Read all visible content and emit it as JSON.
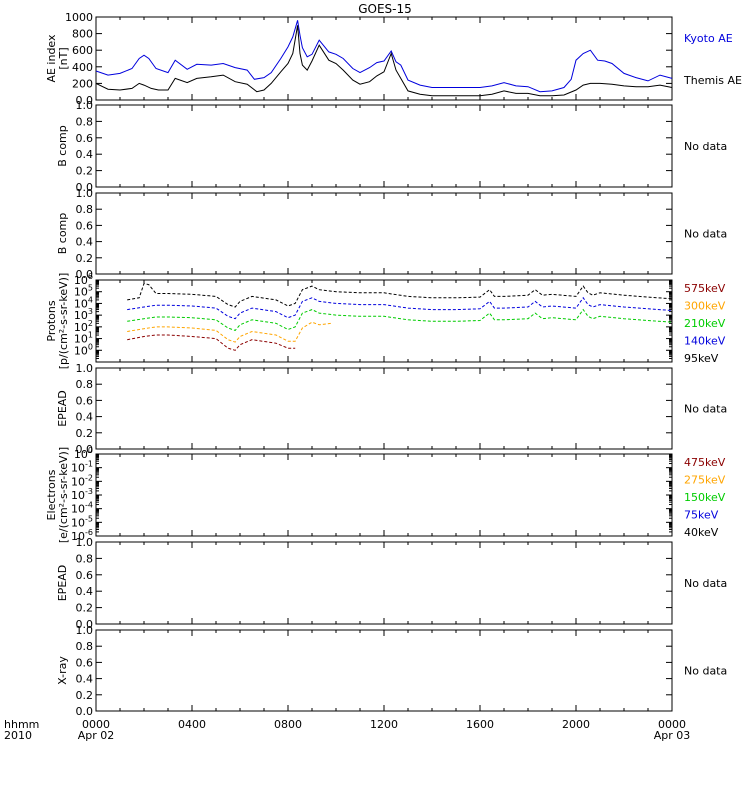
{
  "title": "GOES-15",
  "time_axis": {
    "corner_top": "hhmm",
    "corner_bottom": "2010",
    "ticks": [
      {
        "hours": 0,
        "label": "0000",
        "sublabel": "Apr 02"
      },
      {
        "hours": 4,
        "label": "0400",
        "sublabel": ""
      },
      {
        "hours": 8,
        "label": "0800",
        "sublabel": ""
      },
      {
        "hours": 12,
        "label": "1200",
        "sublabel": ""
      },
      {
        "hours": 16,
        "label": "1600",
        "sublabel": ""
      },
      {
        "hours": 20,
        "label": "2000",
        "sublabel": ""
      },
      {
        "hours": 24,
        "label": "0000",
        "sublabel": "Apr 03"
      }
    ]
  },
  "no_data_text": "No data",
  "colors": {
    "kyoto": "#0000dd",
    "themis": "#000000",
    "e475": "#8b0000",
    "e275": "#ffa500",
    "e150": "#00cc00",
    "e75": "#0000dd",
    "e40": "#000000"
  },
  "chart_data": [
    {
      "id": "ae",
      "type": "line",
      "ylabel": [
        "AE index",
        "[nT]"
      ],
      "ylim": [
        0,
        1000
      ],
      "yticks": [
        0,
        200,
        400,
        600,
        800,
        1000
      ],
      "xlim_hours": [
        0,
        24
      ],
      "series": [
        {
          "name": "Kyoto AE",
          "color_key": "kyoto",
          "x": [
            0,
            0.5,
            1,
            1.5,
            1.8,
            2,
            2.2,
            2.5,
            3,
            3.3,
            3.8,
            4.2,
            4.8,
            5.3,
            5.8,
            6.3,
            6.6,
            7,
            7.3,
            7.7,
            8,
            8.2,
            8.4,
            8.5,
            8.6,
            8.8,
            9,
            9.3,
            9.7,
            10,
            10.3,
            10.7,
            11,
            11.4,
            11.7,
            12,
            12.3,
            12.5,
            12.7,
            13,
            13.5,
            14,
            15,
            16,
            16.5,
            17,
            17.5,
            18,
            18.5,
            19,
            19.5,
            19.8,
            20,
            20.3,
            20.6,
            20.9,
            21.2,
            21.5,
            22,
            22.5,
            23,
            23.5,
            24
          ],
          "y": [
            350,
            300,
            320,
            380,
            500,
            540,
            500,
            380,
            330,
            480,
            370,
            430,
            420,
            440,
            390,
            360,
            250,
            270,
            330,
            500,
            640,
            760,
            960,
            780,
            630,
            520,
            550,
            720,
            580,
            550,
            500,
            380,
            330,
            390,
            450,
            470,
            590,
            460,
            420,
            240,
            180,
            150,
            150,
            150,
            170,
            210,
            170,
            160,
            100,
            110,
            150,
            250,
            480,
            560,
            600,
            480,
            470,
            440,
            320,
            270,
            230,
            300,
            260
          ]
        },
        {
          "name": "Themis AE",
          "color_key": "themis",
          "x": [
            0,
            0.5,
            1,
            1.5,
            1.8,
            2,
            2.3,
            2.6,
            3,
            3.3,
            3.8,
            4.2,
            4.8,
            5.3,
            5.8,
            6.3,
            6.7,
            7,
            7.3,
            7.7,
            8,
            8.2,
            8.4,
            8.5,
            8.6,
            8.8,
            9,
            9.3,
            9.7,
            10,
            10.3,
            10.7,
            11,
            11.4,
            11.7,
            12,
            12.3,
            12.5,
            12.7,
            13,
            13.5,
            14,
            15,
            16,
            16.5,
            17,
            17.5,
            18,
            18.5,
            19,
            19.5,
            20,
            20.3,
            20.6,
            21,
            21.5,
            22,
            22.5,
            23,
            23.5,
            24
          ],
          "y": [
            200,
            130,
            120,
            140,
            200,
            180,
            140,
            120,
            120,
            260,
            210,
            260,
            280,
            300,
            220,
            190,
            100,
            120,
            200,
            340,
            440,
            560,
            900,
            560,
            420,
            360,
            470,
            660,
            480,
            440,
            360,
            240,
            190,
            220,
            290,
            340,
            560,
            360,
            260,
            110,
            70,
            50,
            50,
            50,
            70,
            110,
            80,
            80,
            50,
            50,
            60,
            120,
            180,
            200,
            200,
            190,
            170,
            160,
            160,
            180,
            150
          ]
        }
      ],
      "legend": [
        "Kyoto AE",
        "Themis AE"
      ],
      "legend_placement": "right"
    },
    {
      "id": "b1",
      "type": "line",
      "ylabel": [
        "B comp"
      ],
      "ylim": [
        0,
        1.0
      ],
      "yticks": [
        0.0,
        0.2,
        0.4,
        0.6,
        0.8,
        1.0
      ],
      "series": [],
      "note": "No data"
    },
    {
      "id": "b2",
      "type": "line",
      "ylabel": [
        "B comp"
      ],
      "ylim": [
        0,
        1.0
      ],
      "yticks": [
        0.0,
        0.2,
        0.4,
        0.6,
        0.8,
        1.0
      ],
      "series": [],
      "note": "No data"
    },
    {
      "id": "protons",
      "type": "line",
      "ylabel": [
        "Protons",
        "[p/(cm²-s-sr-keV)]"
      ],
      "scale": "log",
      "ylim": [
        0.1,
        1000000
      ],
      "yticks": [
        1,
        10,
        100,
        1000,
        10000,
        100000,
        1000000
      ],
      "series": [
        {
          "name": "575keV",
          "color": "#8b0000",
          "x": [
            1.3,
            2,
            2.5,
            3,
            4,
            5,
            5.5,
            5.8,
            6,
            6.5,
            7.5,
            8,
            8.3
          ],
          "y": [
            8,
            15,
            20,
            20,
            15,
            10,
            1.5,
            1,
            3,
            8,
            4,
            1.5,
            1.5
          ]
        },
        {
          "name": "300keV",
          "color": "#ffa500",
          "x": [
            1.3,
            2,
            2.5,
            3,
            4,
            5,
            5.5,
            5.8,
            6,
            6.5,
            7.5,
            8,
            8.3,
            8.6,
            9,
            9.3,
            9.8
          ],
          "y": [
            40,
            70,
            100,
            100,
            80,
            50,
            8,
            5,
            15,
            40,
            20,
            6,
            6,
            80,
            250,
            150,
            200
          ]
        },
        {
          "name": "210keV",
          "color": "#00cc00",
          "x": [
            1.3,
            2,
            2.5,
            3,
            4,
            5,
            5.5,
            5.8,
            6,
            6.5,
            7.5,
            8,
            8.3,
            8.6,
            9,
            9.3,
            10,
            11,
            12,
            13,
            14,
            15,
            16,
            16.4,
            16.6,
            17,
            18,
            18.3,
            18.6,
            19,
            20,
            20.3,
            20.5,
            20.7,
            21,
            22,
            23,
            24
          ],
          "y": [
            300,
            500,
            700,
            700,
            600,
            400,
            80,
            50,
            150,
            400,
            200,
            60,
            100,
            1500,
            3000,
            1500,
            1000,
            800,
            800,
            400,
            300,
            300,
            350,
            1500,
            400,
            400,
            500,
            1500,
            500,
            600,
            400,
            3000,
            800,
            500,
            800,
            500,
            350,
            250
          ]
        },
        {
          "name": "140keV",
          "color": "#0000dd",
          "x": [
            1.3,
            2,
            2.5,
            3,
            4,
            5,
            5.5,
            5.8,
            6,
            6.5,
            7.5,
            8,
            8.3,
            8.6,
            9,
            9.3,
            10,
            11,
            12,
            13,
            14,
            15,
            16,
            16.4,
            16.6,
            17,
            18,
            18.3,
            18.6,
            19,
            20,
            20.3,
            20.5,
            20.7,
            21,
            22,
            23,
            24
          ],
          "y": [
            3000,
            5000,
            7000,
            7000,
            6000,
            4000,
            800,
            500,
            1500,
            4000,
            2000,
            600,
            1000,
            15000,
            30000,
            15000,
            10000,
            8000,
            8000,
            4000,
            3000,
            3000,
            3500,
            15000,
            4000,
            4000,
            5000,
            15000,
            5000,
            6000,
            4000,
            30000,
            8000,
            5000,
            8000,
            5000,
            3500,
            2500
          ]
        },
        {
          "name": "95keV",
          "color": "#000000",
          "x": [
            1.3,
            1.8,
            2,
            2.2,
            2.5,
            3,
            4,
            5,
            5.5,
            5.8,
            6,
            6.5,
            7.5,
            8,
            8.3,
            8.6,
            9,
            9.3,
            10,
            11,
            12,
            13,
            14,
            15,
            16,
            16.4,
            16.6,
            17,
            18,
            18.3,
            18.6,
            19,
            20,
            20.3,
            20.5,
            20.7,
            21,
            22,
            23,
            24
          ],
          "y": [
            20000,
            30000,
            500000,
            400000,
            70000,
            70000,
            60000,
            40000,
            8000,
            5000,
            15000,
            40000,
            20000,
            6000,
            10000,
            150000,
            300000,
            150000,
            100000,
            80000,
            80000,
            40000,
            30000,
            30000,
            35000,
            150000,
            40000,
            40000,
            50000,
            150000,
            50000,
            60000,
            40000,
            300000,
            80000,
            50000,
            80000,
            50000,
            35000,
            25000
          ]
        }
      ],
      "legend": [
        "575keV",
        "300keV",
        "210keV",
        "140keV",
        "95keV"
      ],
      "legend_placement": "right"
    },
    {
      "id": "epead1",
      "type": "line",
      "ylabel": [
        "EPEAD"
      ],
      "ylim": [
        0,
        1.0
      ],
      "yticks": [
        0.0,
        0.2,
        0.4,
        0.6,
        0.8,
        1.0
      ],
      "series": [],
      "note": "No data"
    },
    {
      "id": "electrons",
      "type": "line",
      "ylabel": [
        "Electrons",
        "[e/(cm²-s-sr-keV)]"
      ],
      "scale": "log",
      "ylim": [
        1e-06,
        1
      ],
      "yticks": [
        1e-06,
        1e-05,
        0.0001,
        0.001,
        0.01,
        0.1,
        1
      ],
      "series": [],
      "legend": [
        "475keV",
        "275keV",
        "150keV",
        "75keV",
        "40keV"
      ],
      "legend_placement": "right"
    },
    {
      "id": "epead2",
      "type": "line",
      "ylabel": [
        "EPEAD"
      ],
      "ylim": [
        0,
        1.0
      ],
      "yticks": [
        0.0,
        0.2,
        0.4,
        0.6,
        0.8,
        1.0
      ],
      "series": [],
      "note": "No data"
    },
    {
      "id": "xray",
      "type": "line",
      "ylabel": [
        "X-ray"
      ],
      "ylim": [
        0,
        1.0
      ],
      "yticks": [
        0.0,
        0.2,
        0.4,
        0.6,
        0.8,
        1.0
      ],
      "series": [],
      "note": "No data"
    }
  ],
  "legends": {
    "ae": [
      {
        "label": "Kyoto AE",
        "color": "#0000dd"
      },
      {
        "label": "Themis AE",
        "color": "#000000"
      }
    ],
    "protons": [
      {
        "label": "575keV",
        "color": "#8b0000"
      },
      {
        "label": "300keV",
        "color": "#ffa500"
      },
      {
        "label": "210keV",
        "color": "#00cc00"
      },
      {
        "label": "140keV",
        "color": "#0000dd"
      },
      {
        "label": "95keV",
        "color": "#000000"
      }
    ],
    "electrons": [
      {
        "label": "475keV",
        "color": "#8b0000"
      },
      {
        "label": "275keV",
        "color": "#ffa500"
      },
      {
        "label": "150keV",
        "color": "#00cc00"
      },
      {
        "label": "75keV",
        "color": "#0000dd"
      },
      {
        "label": "40keV",
        "color": "#000000"
      }
    ]
  }
}
